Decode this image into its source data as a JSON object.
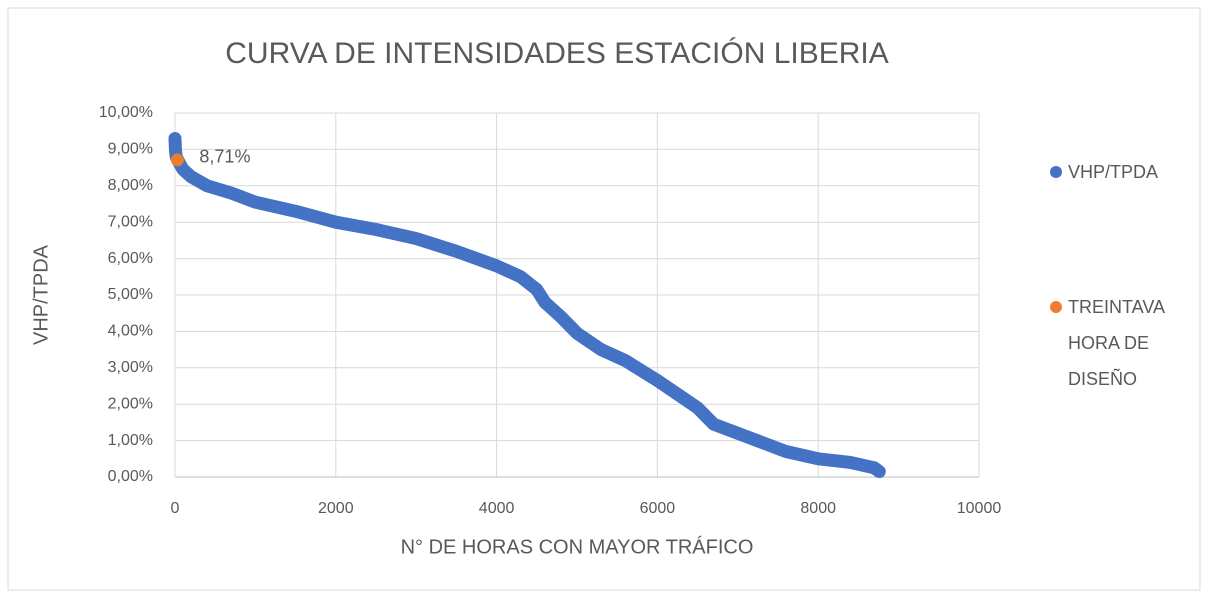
{
  "chart_data": {
    "type": "scatter",
    "title": "CURVA DE INTENSIDADES ESTACIÓN LIBERIA",
    "x_label": "N° DE HORAS CON MAYOR TRÁFICO",
    "y_label": "VHP/TPDA",
    "xlim": [
      0,
      10000
    ],
    "xticks": [
      0,
      2000,
      4000,
      6000,
      8000,
      10000
    ],
    "ylim": [
      0,
      10
    ],
    "yticks": [
      {
        "value": 0,
        "label": "0,00%"
      },
      {
        "value": 1,
        "label": "1,00%"
      },
      {
        "value": 2,
        "label": "2,00%"
      },
      {
        "value": 3,
        "label": "3,00%"
      },
      {
        "value": 4,
        "label": "4,00%"
      },
      {
        "value": 5,
        "label": "5,00%"
      },
      {
        "value": 6,
        "label": "6,00%"
      },
      {
        "value": 7,
        "label": "7,00%"
      },
      {
        "value": 8,
        "label": "8,00%"
      },
      {
        "value": 9,
        "label": "9,00%"
      },
      {
        "value": 10,
        "label": "10,00%"
      }
    ],
    "grid": true,
    "legend": "right",
    "series": [
      {
        "name": "VHP/TPDA",
        "color": "#4472c4",
        "x": [
          0,
          5,
          15,
          60,
          100,
          200,
          400,
          700,
          1000,
          1500,
          2000,
          2500,
          3000,
          3500,
          4000,
          4300,
          4500,
          4600,
          4800,
          5000,
          5300,
          5600,
          6000,
          6300,
          6500,
          6700,
          7000,
          7300,
          7600,
          8000,
          8400,
          8600,
          8700,
          8760
        ],
        "values": [
          9.3,
          9.0,
          8.8,
          8.6,
          8.45,
          8.25,
          8.0,
          7.8,
          7.55,
          7.3,
          7.0,
          6.8,
          6.55,
          6.2,
          5.8,
          5.5,
          5.15,
          4.8,
          4.4,
          3.95,
          3.5,
          3.2,
          2.65,
          2.2,
          1.9,
          1.45,
          1.2,
          0.95,
          0.7,
          0.5,
          0.4,
          0.3,
          0.25,
          0.15
        ]
      },
      {
        "name": "TREINTAVA HORA DE DISEÑO",
        "color": "#ed7d31",
        "x": [
          30
        ],
        "values": [
          8.71
        ],
        "value_labels": [
          "8,71%"
        ]
      }
    ]
  }
}
